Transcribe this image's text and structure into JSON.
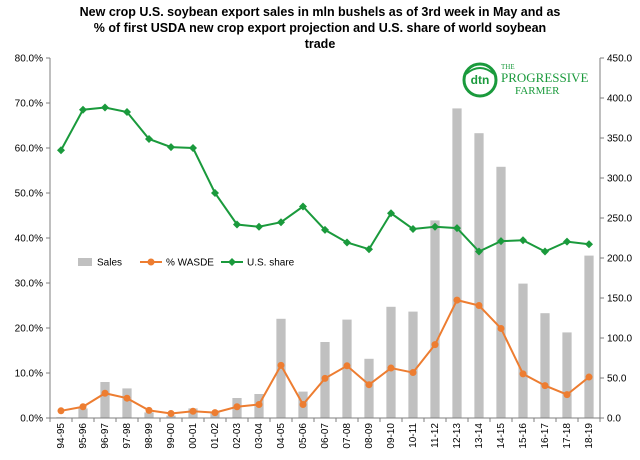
{
  "chart_data": {
    "type": "bar",
    "title_lines": [
      "New crop U.S. soybean export sales in mln bushels as of 3rd week in May and as",
      "%  of first USDA  new crop export projection and U.S. share of world soybean",
      "trade"
    ],
    "categories": [
      "94-95",
      "95-96",
      "96-97",
      "97-98",
      "98-99",
      "99-00",
      "00-01",
      "01-02",
      "02-03",
      "03-04",
      "04-05",
      "05-06",
      "06-07",
      "07-08",
      "08-09",
      "09-10",
      "10-11",
      "11-12",
      "12-13",
      "13-14",
      "14-15",
      "15-16",
      "16-17",
      "17-18",
      "18-19"
    ],
    "left_axis": {
      "min": 0,
      "max": 0.8,
      "step": 0.1,
      "tick_labels": [
        "0.0%",
        "10.0%",
        "20.0%",
        "30.0%",
        "40.0%",
        "50.0%",
        "60.0%",
        "70.0%",
        "80.0%"
      ]
    },
    "right_axis": {
      "min": 0,
      "max": 450,
      "step": 50,
      "tick_labels": [
        "0.0",
        "50.0",
        "100.0",
        "150.0",
        "200.0",
        "250.0",
        "300.0",
        "350.0",
        "400.0",
        "450.0"
      ]
    },
    "grid": false,
    "legend_position": "middle-left",
    "series": [
      {
        "name": "Sales",
        "type": "bar",
        "axis": "right",
        "color": "#c0c0c0",
        "values": [
          1,
          12,
          45,
          37,
          7,
          3,
          12,
          8,
          25,
          30,
          124,
          33,
          95,
          123,
          74,
          139,
          133,
          247,
          387,
          356,
          314,
          168,
          131,
          107,
          203
        ]
      },
      {
        "name": "% WASDE",
        "type": "line",
        "axis": "left",
        "color": "#ed7d31",
        "marker": "circle",
        "values": [
          0.016,
          0.025,
          0.055,
          0.044,
          0.017,
          0.01,
          0.015,
          0.012,
          0.025,
          0.03,
          0.117,
          0.03,
          0.088,
          0.116,
          0.074,
          0.111,
          0.101,
          0.163,
          0.262,
          0.25,
          0.199,
          0.098,
          0.072,
          0.052,
          0.091
        ]
      },
      {
        "name": "U.S. share",
        "type": "line",
        "axis": "left",
        "color": "#1a9a3c",
        "marker": "diamond",
        "values": [
          0.595,
          0.685,
          0.69,
          0.68,
          0.62,
          0.602,
          0.6,
          0.5,
          0.43,
          0.425,
          0.435,
          0.47,
          0.418,
          0.39,
          0.375,
          0.455,
          0.42,
          0.425,
          0.422,
          0.37,
          0.393,
          0.395,
          0.37,
          0.392,
          0.386
        ]
      }
    ]
  },
  "logo": {
    "badge": "dtn",
    "line1": "THE",
    "line2": "PROGRESSIVE",
    "line3": "FARMER",
    "color": "#1a9a3c"
  }
}
